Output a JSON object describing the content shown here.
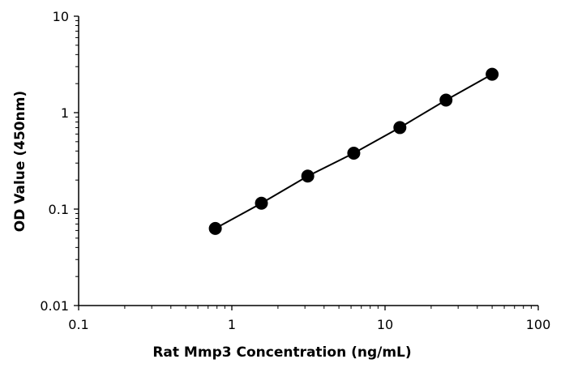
{
  "chart_data": {
    "type": "scatter",
    "title": "",
    "xlabel": "Rat Mmp3 Concentration  (ng/mL)",
    "ylabel": "OD Value (450nm)",
    "xscale": "log",
    "yscale": "log",
    "xlim": [
      0.1,
      100
    ],
    "ylim": [
      0.01,
      10
    ],
    "xticks": [
      0.1,
      1,
      10,
      100
    ],
    "xtick_labels": [
      "0.1",
      "1",
      "10",
      "100"
    ],
    "yticks": [
      0.01,
      0.1,
      1,
      10
    ],
    "ytick_labels": [
      "0.01",
      "0.1",
      "1",
      "10"
    ],
    "grid": false,
    "legend": "none",
    "connect_points": true,
    "line_color": "#000000",
    "marker_color": "#000000",
    "series": [
      {
        "x": [
          0.78,
          1.56,
          3.13,
          6.25,
          12.5,
          25,
          50
        ],
        "y": [
          0.063,
          0.115,
          0.22,
          0.38,
          0.7,
          1.35,
          2.5
        ]
      }
    ]
  }
}
